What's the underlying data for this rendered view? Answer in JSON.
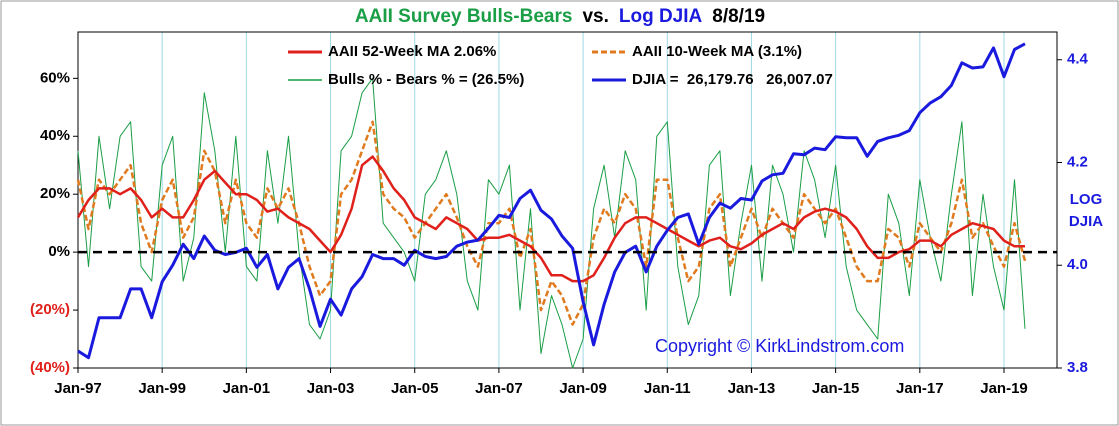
{
  "chart_data": {
    "type": "line",
    "title": [
      "AAII Survey Bulls-Bears",
      "vs.",
      "Log DJIA",
      "8/8/19"
    ],
    "title_colors": [
      "#1a9e46",
      "#000000",
      "#1a1adf",
      "#000000"
    ],
    "annotation": "Copyright © KirkLindstrom.com",
    "y2label": [
      "LOG",
      "DJIA"
    ],
    "categories": [
      "Jan-97",
      null,
      null,
      null,
      null,
      null,
      null,
      null,
      "Jan-99",
      null,
      null,
      null,
      null,
      null,
      null,
      null,
      "Jan-01",
      null,
      null,
      null,
      null,
      null,
      null,
      null,
      "Jan-03",
      null,
      null,
      null,
      null,
      null,
      null,
      null,
      "Jan-05",
      null,
      null,
      null,
      null,
      null,
      null,
      null,
      "Jan-07",
      null,
      null,
      null,
      null,
      null,
      null,
      null,
      "Jan-09",
      null,
      null,
      null,
      null,
      null,
      null,
      null,
      "Jan-11",
      null,
      null,
      null,
      null,
      null,
      null,
      null,
      "Jan-13",
      null,
      null,
      null,
      null,
      null,
      null,
      null,
      "Jan-15",
      null,
      null,
      null,
      null,
      null,
      null,
      null,
      "Jan-17",
      null,
      null,
      null,
      null,
      null,
      null,
      null,
      "Jan-19",
      null,
      null
    ],
    "ylim": [
      -40,
      76
    ],
    "yticks": [
      {
        "value": -40,
        "label": "(40%)"
      },
      {
        "value": -20,
        "label": "(20%)"
      },
      {
        "value": 0,
        "label": "0%"
      },
      {
        "value": 20,
        "label": "20%"
      },
      {
        "value": 40,
        "label": "40%"
      },
      {
        "value": 60,
        "label": "60%"
      }
    ],
    "ytick_negative_color": "#e0201b",
    "y2lim": [
      3.8,
      4.454
    ],
    "y2ticks": [
      3.8,
      {
        "value": 4,
        "label": "4.0"
      },
      4.2,
      4.4
    ],
    "zero_line": true,
    "series": [
      {
        "name": "Bulls % - Bears % = (26.5%)",
        "color": "#1a9e46",
        "values": [
          35,
          -5,
          40,
          15,
          40,
          45,
          -5,
          -10,
          30,
          40,
          -10,
          5,
          55,
          35,
          0,
          40,
          -5,
          -10,
          35,
          10,
          40,
          0,
          -25,
          -30,
          -20,
          35,
          40,
          55,
          60,
          10,
          5,
          0,
          -10,
          20,
          25,
          35,
          20,
          -10,
          -20,
          25,
          20,
          30,
          -20,
          15,
          -35,
          -15,
          -25,
          -40,
          -30,
          15,
          30,
          5,
          35,
          25,
          -20,
          40,
          45,
          -5,
          -25,
          -15,
          30,
          35,
          -15,
          10,
          30,
          -10,
          30,
          20,
          0,
          35,
          25,
          5,
          30,
          -5,
          -20,
          -25,
          -30,
          20,
          10,
          -15,
          25,
          5,
          -10,
          20,
          45,
          -15,
          20,
          -5,
          -20,
          25,
          -26.5
        ]
      },
      {
        "name": "AAII 10-Week MA (3.1%)",
        "color": "#e07a1f",
        "dashed": true,
        "values": [
          25,
          8,
          25,
          20,
          25,
          30,
          10,
          0,
          18,
          25,
          5,
          12,
          35,
          28,
          10,
          25,
          10,
          5,
          22,
          15,
          22,
          10,
          -5,
          -15,
          -10,
          20,
          25,
          35,
          45,
          20,
          15,
          12,
          5,
          10,
          15,
          20,
          12,
          2,
          -5,
          10,
          10,
          15,
          -2,
          8,
          -20,
          -10,
          -15,
          -25,
          -18,
          5,
          15,
          10,
          20,
          15,
          -5,
          25,
          25,
          5,
          -10,
          -5,
          15,
          20,
          -5,
          5,
          15,
          5,
          15,
          10,
          5,
          20,
          15,
          10,
          15,
          5,
          -5,
          -10,
          -10,
          8,
          5,
          -5,
          10,
          5,
          0,
          10,
          25,
          5,
          10,
          2,
          -5,
          10,
          -3
        ]
      },
      {
        "name": "AAII 52-Week MA 2.06%",
        "color": "#e0201b",
        "values": [
          12,
          18,
          22,
          22,
          20,
          22,
          18,
          12,
          15,
          12,
          12,
          18,
          25,
          28,
          24,
          20,
          20,
          18,
          14,
          15,
          12,
          10,
          8,
          4,
          0,
          6,
          15,
          30,
          33,
          28,
          22,
          18,
          12,
          10,
          8,
          12,
          10,
          8,
          4,
          5,
          5,
          6,
          4,
          2,
          -2,
          -8,
          -8,
          -10,
          -10,
          -8,
          -2,
          5,
          10,
          12,
          12,
          10,
          8,
          6,
          4,
          2,
          4,
          5,
          2,
          1,
          3,
          6,
          8,
          10,
          8,
          12,
          14,
          15,
          14,
          12,
          8,
          2,
          -2,
          -2,
          0,
          1,
          4,
          4,
          2,
          6,
          8,
          10,
          9,
          8,
          4,
          2,
          2
        ]
      },
      {
        "name": "DJIA =  26,179.76   26,007.07",
        "color": "#1a1adf",
        "axis": "y2",
        "values": [
          3.833,
          3.82,
          3.898,
          3.898,
          3.898,
          3.954,
          3.954,
          3.898,
          3.968,
          4.0,
          4.041,
          4.013,
          4.057,
          4.029,
          4.021,
          4.025,
          4.033,
          3.996,
          4.021,
          3.954,
          3.996,
          4.013,
          3.954,
          3.881,
          3.934,
          3.903,
          3.954,
          3.978,
          4.021,
          4.013,
          4.013,
          4.0,
          4.029,
          4.017,
          4.013,
          4.017,
          4.037,
          4.045,
          4.049,
          4.072,
          4.097,
          4.093,
          4.13,
          4.146,
          4.107,
          4.09,
          4.057,
          4.033,
          3.929,
          3.845,
          3.924,
          3.987,
          4.025,
          4.037,
          3.987,
          4.037,
          4.068,
          4.093,
          4.1,
          4.041,
          4.093,
          4.121,
          4.111,
          4.13,
          4.127,
          4.164,
          4.176,
          4.179,
          4.217,
          4.215,
          4.228,
          4.225,
          4.25,
          4.248,
          4.248,
          4.212,
          4.241,
          4.248,
          4.253,
          4.262,
          4.297,
          4.316,
          4.328,
          4.35,
          4.394,
          4.384,
          4.386,
          4.423,
          4.367,
          4.42,
          4.431
        ]
      }
    ]
  }
}
